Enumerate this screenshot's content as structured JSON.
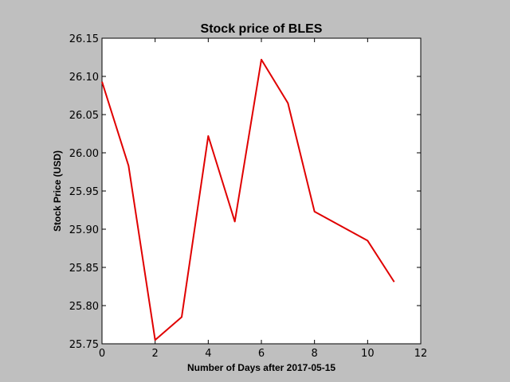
{
  "chart_data": {
    "type": "line",
    "title": "Stock price of BLES",
    "xlabel": "Number of Days after 2017-05-15",
    "ylabel": "Stock Price (USD)",
    "xlim": [
      0,
      12
    ],
    "ylim": [
      25.75,
      26.15
    ],
    "x_ticks": [
      0,
      2,
      4,
      6,
      8,
      10,
      12
    ],
    "y_ticks": [
      25.75,
      25.8,
      25.85,
      25.9,
      25.95,
      26.0,
      26.05,
      26.1,
      26.15
    ],
    "x_tick_labels": [
      "0",
      "2",
      "4",
      "6",
      "8",
      "10",
      "12"
    ],
    "y_tick_labels": [
      "25.75",
      "25.80",
      "25.85",
      "25.90",
      "25.95",
      "26.00",
      "26.05",
      "26.10",
      "26.15"
    ],
    "grid": false,
    "series": [
      {
        "color": "#e00000",
        "x": [
          0,
          1,
          2,
          3,
          4,
          5,
          6,
          7,
          8,
          10,
          11
        ],
        "y": [
          26.093,
          25.983,
          25.755,
          25.785,
          26.022,
          25.91,
          26.122,
          26.065,
          25.923,
          25.885,
          25.831
        ]
      }
    ]
  }
}
